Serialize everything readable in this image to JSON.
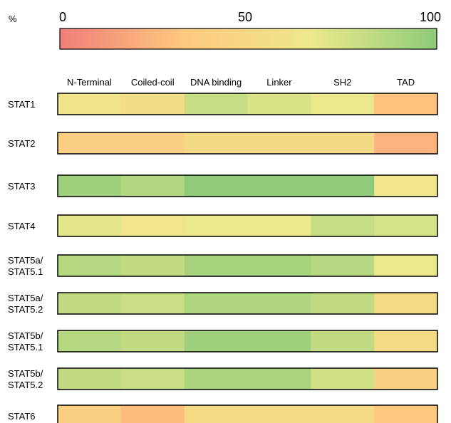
{
  "chart_data": {
    "type": "heatmap",
    "title": "",
    "colorbar": {
      "unit_label": "%",
      "ticks": [
        "0",
        "50",
        "100"
      ],
      "range": [
        0,
        100
      ],
      "colors": [
        "#f07f7a",
        "#ffc97e",
        "#ede98c",
        "#8fcb79"
      ]
    },
    "columns": [
      "N-Terminal",
      "Coiled-coil",
      "DNA binding",
      "Linker",
      "SH2",
      "TAD"
    ],
    "rows": [
      {
        "label": [
          "STAT1"
        ],
        "values": [
          61,
          54,
          80,
          73,
          67,
          30
        ]
      },
      {
        "label": [
          "STAT2"
        ],
        "values": [
          40,
          40,
          51,
          51,
          51,
          24
        ]
      },
      {
        "label": [
          "STAT3"
        ],
        "values": [
          94,
          88,
          100,
          100,
          100,
          63
        ]
      },
      {
        "label": [
          "STAT4"
        ],
        "values": [
          70,
          62,
          67,
          67,
          80,
          75
        ]
      },
      {
        "label": [
          "STAT5a/",
          "STAT5.1"
        ],
        "values": [
          86,
          82,
          92,
          92,
          86,
          68
        ]
      },
      {
        "label": [
          "STAT5a/",
          "STAT5.2"
        ],
        "values": [
          82,
          79,
          89,
          89,
          82,
          52
        ]
      },
      {
        "label": [
          "STAT5b/",
          "STAT5.1"
        ],
        "values": [
          86,
          82,
          94,
          94,
          82,
          52
        ]
      },
      {
        "label": [
          "STAT5b/",
          "STAT5.2"
        ],
        "values": [
          82,
          79,
          90,
          90,
          77,
          40
        ]
      },
      {
        "label": [
          "STAT6"
        ],
        "values": [
          40,
          28,
          52,
          52,
          52,
          33
        ]
      }
    ]
  }
}
